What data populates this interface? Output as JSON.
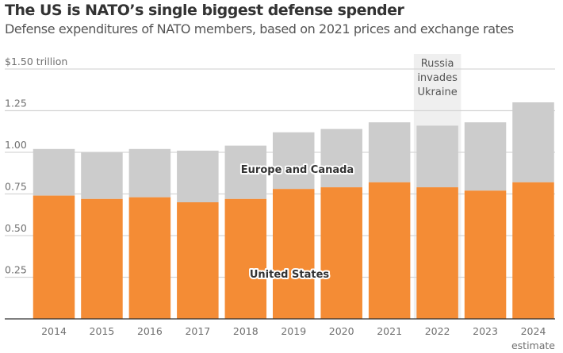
{
  "header": {
    "title": "The US is NATO’s single biggest defense spender",
    "subtitle": "Defense expenditures of NATO members, based on 2021 prices and exchange rates"
  },
  "chart_data": {
    "type": "bar",
    "stacked": true,
    "title": "The US is NATO’s single biggest defense spender",
    "subtitle": "Defense expenditures of NATO members, based on 2021 prices and exchange rates",
    "xlabel": "",
    "ylabel": "",
    "unit": "trillion USD",
    "ylim": [
      0,
      1.5
    ],
    "yticks": [
      0.25,
      0.5,
      0.75,
      1.0,
      1.25,
      1.5
    ],
    "ytick_labels": [
      "0.25",
      "0.50",
      "0.75",
      "1.00",
      "1.25",
      "$1.50 trillion"
    ],
    "grid": true,
    "categories": [
      "2014",
      "2015",
      "2016",
      "2017",
      "2018",
      "2019",
      "2020",
      "2021",
      "2022",
      "2023",
      "2024"
    ],
    "category_sublabels": {
      "2024": "estimate"
    },
    "series": [
      {
        "name": "United States",
        "color": "#F48C35",
        "values": [
          0.74,
          0.72,
          0.73,
          0.7,
          0.72,
          0.78,
          0.79,
          0.82,
          0.79,
          0.77,
          0.82
        ]
      },
      {
        "name": "Europe and Canada",
        "color": "#CCCCCC",
        "values": [
          0.28,
          0.28,
          0.29,
          0.31,
          0.32,
          0.34,
          0.35,
          0.36,
          0.37,
          0.41,
          0.48
        ]
      }
    ],
    "totals": [
      1.02,
      1.0,
      1.02,
      1.01,
      1.04,
      1.12,
      1.14,
      1.18,
      1.16,
      1.18,
      1.3
    ],
    "annotations": [
      {
        "category": "2022",
        "lines": [
          "Russia",
          "invades",
          "Ukraine"
        ],
        "band_color": "#EFEFEF"
      }
    ],
    "legend": "inline-labels"
  }
}
